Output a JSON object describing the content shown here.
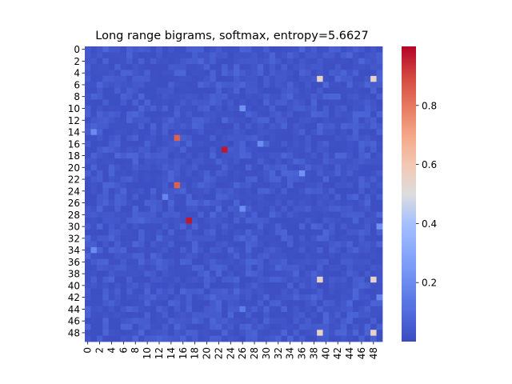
{
  "chart_data": {
    "type": "heatmap",
    "title": "Long range bigrams, softmax, entropy=5.6627",
    "xlabel": "",
    "ylabel": "",
    "rows": 50,
    "cols": 50,
    "x_tick_labels": [
      "0",
      "2",
      "4",
      "6",
      "8",
      "10",
      "12",
      "14",
      "16",
      "18",
      "20",
      "22",
      "24",
      "26",
      "28",
      "30",
      "32",
      "34",
      "36",
      "38",
      "40",
      "42",
      "44",
      "46",
      "48"
    ],
    "y_tick_labels": [
      "0",
      "2",
      "4",
      "6",
      "8",
      "10",
      "12",
      "14",
      "16",
      "18",
      "20",
      "22",
      "24",
      "26",
      "28",
      "30",
      "32",
      "34",
      "36",
      "38",
      "40",
      "42",
      "44",
      "46",
      "48"
    ],
    "colorbar": {
      "colormap": "coolwarm",
      "vmin": 0.0,
      "vmax": 1.0,
      "tick_values": [
        0.2,
        0.4,
        0.6,
        0.8
      ],
      "tick_labels": [
        "0.2",
        "0.4",
        "0.6",
        "0.8"
      ]
    },
    "background_value_range": [
      0.01,
      0.08
    ],
    "highlighted_cells": [
      {
        "row": 5,
        "col": 39,
        "value": 0.55
      },
      {
        "row": 5,
        "col": 48,
        "value": 0.55
      },
      {
        "row": 15,
        "col": 15,
        "value": 0.85
      },
      {
        "row": 17,
        "col": 23,
        "value": 0.97
      },
      {
        "row": 23,
        "col": 15,
        "value": 0.85
      },
      {
        "row": 29,
        "col": 17,
        "value": 0.97
      },
      {
        "row": 39,
        "col": 39,
        "value": 0.55
      },
      {
        "row": 39,
        "col": 48,
        "value": 0.55
      },
      {
        "row": 48,
        "col": 39,
        "value": 0.55
      },
      {
        "row": 48,
        "col": 48,
        "value": 0.55
      },
      {
        "row": 10,
        "col": 26,
        "value": 0.22
      },
      {
        "row": 14,
        "col": 1,
        "value": 0.2
      },
      {
        "row": 16,
        "col": 29,
        "value": 0.2
      },
      {
        "row": 21,
        "col": 36,
        "value": 0.22
      },
      {
        "row": 25,
        "col": 13,
        "value": 0.18
      },
      {
        "row": 27,
        "col": 26,
        "value": 0.2
      },
      {
        "row": 30,
        "col": 49,
        "value": 0.22
      },
      {
        "row": 34,
        "col": 1,
        "value": 0.2
      },
      {
        "row": 42,
        "col": 49,
        "value": 0.18
      },
      {
        "row": 44,
        "col": 26,
        "value": 0.15
      }
    ]
  }
}
